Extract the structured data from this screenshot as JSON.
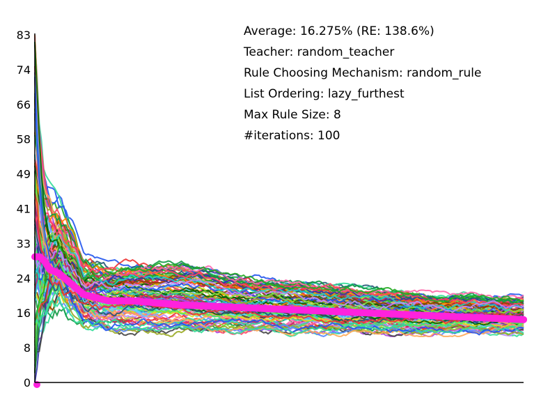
{
  "chart_data": {
    "type": "line",
    "title": "",
    "xlabel": "",
    "ylabel": "",
    "ylim": [
      0,
      83
    ],
    "xlim": [
      0,
      1
    ],
    "y_ticks": [
      "0",
      "8",
      "16",
      "24",
      "33",
      "41",
      "49",
      "58",
      "66",
      "74",
      "83"
    ],
    "y_tick_values": [
      0,
      8.3,
      16.6,
      24.9,
      33.2,
      41.5,
      49.8,
      58.1,
      66.4,
      74.7,
      83
    ],
    "grid": false,
    "legend": "none",
    "annotations": [
      "Average: 16.275% (RE: 138.6%)",
      "Teacher: random_teacher",
      "Rule Choosing Mechanism: random_rule",
      "List Ordering: lazy_furthest",
      "Max Rule Size: 8",
      "#iterations: 100"
    ],
    "series_count": 100,
    "average_series": {
      "color": "#ff22dd",
      "x": [
        0,
        0.01,
        0.02,
        0.03,
        0.05,
        0.08,
        0.1,
        0.15,
        0.2,
        0.3,
        0.4,
        0.5,
        0.6,
        0.7,
        0.8,
        0.9,
        1.0
      ],
      "y": [
        30,
        30,
        29,
        27,
        26,
        23,
        21,
        19.5,
        19.5,
        18.5,
        18,
        17.5,
        17,
        16.5,
        16,
        15.5,
        15
      ]
    },
    "envelope": {
      "x": [
        0,
        0.01,
        0.02,
        0.03,
        0.05,
        0.08,
        0.1,
        0.15,
        0.2,
        0.3,
        0.4,
        0.5,
        0.6,
        0.7,
        0.8,
        0.9,
        1.0
      ],
      "upper": [
        83,
        62,
        50,
        48,
        45,
        38,
        31,
        29,
        30,
        30,
        27,
        25,
        24,
        23,
        22,
        21.5,
        21
      ],
      "lower": [
        0,
        5,
        10,
        12,
        14,
        13,
        12,
        12,
        11,
        11,
        11,
        11,
        11,
        11,
        11,
        11,
        11
      ]
    },
    "palette": [
      "#22aa22",
      "#2255ee",
      "#ee3333",
      "#33dd99",
      "#aa44dd",
      "#dddd22",
      "#ff8800",
      "#66ccff",
      "#884400",
      "#119944",
      "#ff66aa",
      "#444444",
      "#88dd44",
      "#3333aa",
      "#cc2266",
      "#22cccc",
      "#99aa22",
      "#ff4466",
      "#5588ff",
      "#006600",
      "#bb88ff",
      "#55ee55",
      "#ffaa55",
      "#225577"
    ]
  }
}
